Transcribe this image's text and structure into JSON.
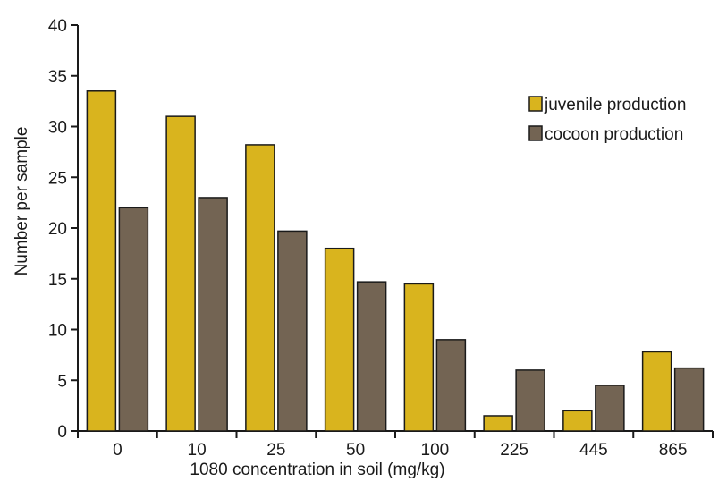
{
  "chart_data": {
    "type": "bar",
    "title": "",
    "xlabel": "1080 concentration in soil (mg/kg)",
    "ylabel": "Number per sample",
    "categories": [
      "0",
      "10",
      "25",
      "50",
      "100",
      "225",
      "445",
      "865"
    ],
    "series": [
      {
        "name": "juvenile production",
        "color": "#d9b41e",
        "values": [
          33.5,
          31,
          28.2,
          18,
          14.5,
          1.5,
          2,
          7.8
        ]
      },
      {
        "name": "cocoon production",
        "color": "#736453",
        "values": [
          22,
          23,
          19.7,
          14.7,
          9,
          6,
          4.5,
          6.2
        ]
      }
    ],
    "ylim": [
      0,
      40
    ],
    "yticks": [
      0,
      5,
      10,
      15,
      20,
      25,
      30,
      35,
      40
    ],
    "legend_position": "top-right",
    "grid": false
  }
}
